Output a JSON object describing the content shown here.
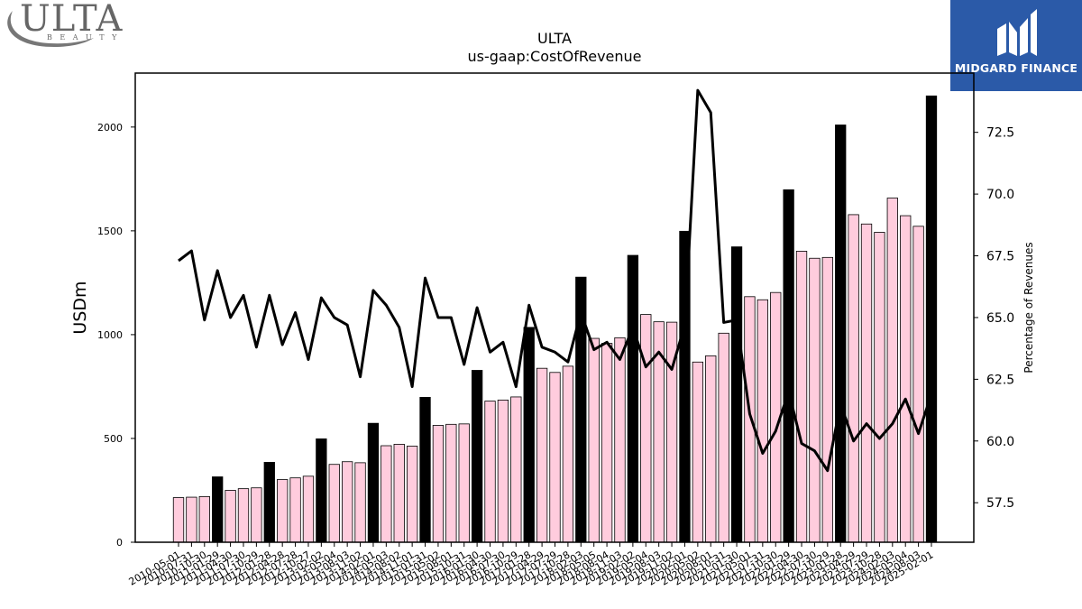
{
  "logos": {
    "left": {
      "word": "ULTA",
      "sub": "BEAUTY"
    },
    "right": {
      "text": "MIDGARD FINANCE"
    }
  },
  "chart_data": {
    "type": "bar",
    "title": "ULTA",
    "subtitle": "us-gaap:CostOfRevenue",
    "ylabel": "USDm",
    "y2label": "Percentage of Revenues",
    "ylim": [
      0,
      2260
    ],
    "y2lim": [
      55.9,
      74.9
    ],
    "yticks": [
      0,
      500,
      1000,
      1500,
      2000
    ],
    "y2ticks": [
      57.5,
      60.0,
      62.5,
      65.0,
      67.5,
      70.0,
      72.5
    ],
    "categories": [
      "2010-05-01",
      "2010-07-31",
      "2010-10-30",
      "2011-01-29",
      "2011-04-30",
      "2011-07-30",
      "2011-10-29",
      "2012-01-28",
      "2012-04-28",
      "2012-07-28",
      "2012-10-27",
      "2013-02-02",
      "2013-05-04",
      "2013-08-03",
      "2013-11-02",
      "2014-02-01",
      "2014-05-03",
      "2014-08-02",
      "2014-11-01",
      "2015-01-31",
      "2015-05-02",
      "2015-08-01",
      "2015-10-31",
      "2016-01-30",
      "2016-04-30",
      "2016-07-30",
      "2016-10-29",
      "2017-01-28",
      "2017-04-29",
      "2017-07-29",
      "2017-10-28",
      "2018-02-03",
      "2018-05-05",
      "2018-08-04",
      "2018-11-03",
      "2019-02-02",
      "2019-05-04",
      "2019-08-03",
      "2019-11-02",
      "2020-02-01",
      "2020-05-02",
      "2020-08-01",
      "2020-10-31",
      "2021-01-30",
      "2021-05-01",
      "2021-07-31",
      "2021-10-30",
      "2022-01-29",
      "2022-04-30",
      "2022-07-30",
      "2022-10-29",
      "2023-01-28",
      "2023-04-29",
      "2023-07-29",
      "2023-10-28",
      "2024-02-03",
      "2024-05-04",
      "2024-08-03",
      "2025-02-01"
    ],
    "values": [
      215,
      217,
      220,
      315,
      250,
      258,
      262,
      385,
      302,
      310,
      318,
      498,
      375,
      388,
      383,
      573,
      465,
      472,
      463,
      698,
      563,
      568,
      570,
      828,
      680,
      685,
      700,
      1035,
      838,
      818,
      848,
      1277,
      982,
      958,
      985,
      1382,
      1097,
      1062,
      1060,
      1498,
      868,
      898,
      1007,
      1423,
      1183,
      1168,
      1203,
      1698,
      1402,
      1368,
      1372,
      2010,
      1578,
      1533,
      1493,
      1658,
      1573,
      1522,
      2150
    ],
    "fourth_quarter_flags": [
      0,
      0,
      0,
      1,
      0,
      0,
      0,
      1,
      0,
      0,
      0,
      1,
      0,
      0,
      0,
      1,
      0,
      0,
      0,
      1,
      0,
      0,
      0,
      1,
      0,
      0,
      0,
      1,
      0,
      0,
      0,
      1,
      0,
      0,
      0,
      1,
      0,
      0,
      0,
      1,
      0,
      0,
      0,
      1,
      0,
      0,
      0,
      1,
      0,
      0,
      0,
      1,
      0,
      0,
      0,
      0,
      0,
      0,
      1
    ],
    "percent_of_revenues": [
      67.3,
      67.7,
      64.9,
      66.9,
      65.0,
      65.9,
      63.8,
      65.9,
      63.9,
      65.2,
      63.3,
      65.8,
      65.0,
      64.7,
      62.6,
      66.1,
      65.5,
      64.6,
      62.2,
      66.6,
      65.0,
      65.0,
      63.1,
      65.4,
      63.6,
      64.0,
      62.2,
      65.5,
      63.8,
      63.6,
      63.2,
      65.2,
      63.7,
      64.0,
      63.3,
      64.6,
      63.0,
      63.6,
      62.9,
      64.7,
      74.2,
      73.3,
      64.8,
      64.9,
      61.1,
      59.5,
      60.4,
      62.0,
      59.9,
      59.6,
      58.8,
      61.5,
      60.0,
      60.7,
      60.1,
      60.7,
      61.7,
      60.3,
      61.9
    ],
    "colors": {
      "regular_bar": "#ffccdd",
      "q4_bar": "#000000",
      "line": "#000000"
    },
    "grid": false,
    "legend": "none"
  }
}
